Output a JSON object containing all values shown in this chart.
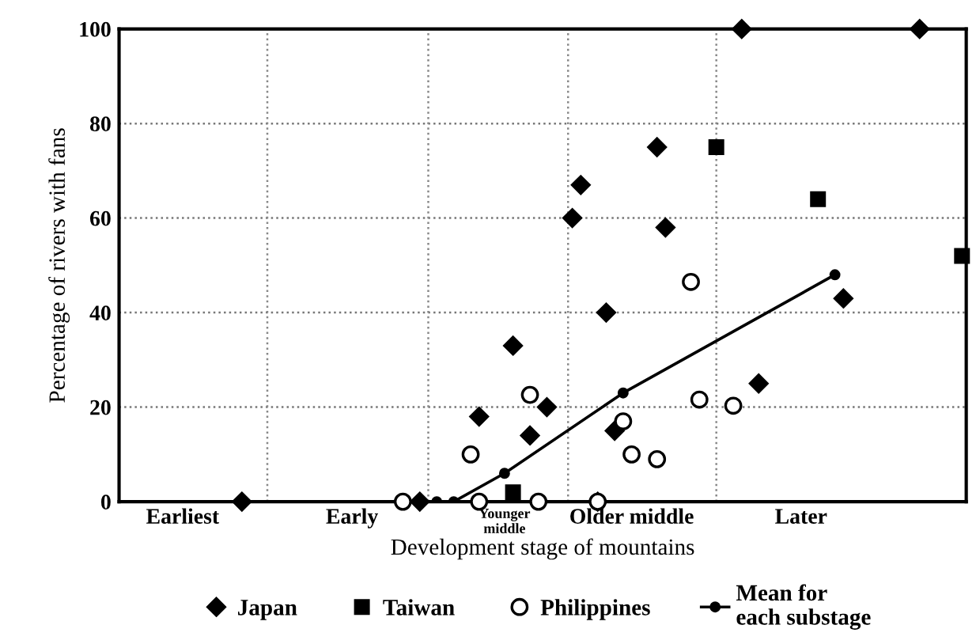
{
  "chart_data": {
    "type": "scatter",
    "xlabel": "Development stage of mountains",
    "ylabel": "Percentage of rivers with fans",
    "ylim": [
      0,
      100
    ],
    "yticks": [
      0,
      20,
      40,
      60,
      80,
      100
    ],
    "categories": [
      null,
      null,
      null,
      null,
      null,
      null,
      null,
      "Earliest",
      null,
      null,
      null,
      null,
      null,
      null,
      null,
      null,
      null,
      null,
      null,
      null,
      null,
      null,
      null,
      null,
      null,
      null,
      null,
      "Early",
      null,
      null,
      null,
      null,
      null,
      null,
      null,
      null,
      null,
      null,
      null,
      null,
      null,
      null,
      null,
      null,
      null,
      "Younger\nmiddle",
      null,
      null,
      null,
      null,
      null,
      null,
      null,
      null,
      null,
      null,
      null,
      null,
      null,
      null,
      "Older middle",
      null,
      null,
      null,
      null,
      null,
      null,
      null,
      null,
      null,
      null,
      null,
      null,
      null,
      null,
      null,
      null,
      null,
      null,
      null,
      "Later",
      null,
      null,
      null,
      null,
      null,
      null,
      null,
      null,
      null,
      null,
      null,
      null,
      null,
      null,
      null,
      null,
      null,
      null,
      null
    ],
    "grid": "y",
    "legend": "bottom",
    "series": [
      {
        "name": "Japan",
        "marker": "diamond",
        "color": "#000000",
        "values": [
          null,
          null,
          null,
          null,
          null,
          null,
          null,
          null,
          null,
          null,
          null,
          null,
          null,
          null,
          0,
          null,
          null,
          null,
          null,
          null,
          null,
          null,
          null,
          null,
          null,
          null,
          null,
          null,
          null,
          null,
          null,
          null,
          null,
          null,
          null,
          0,
          null,
          null,
          null,
          null,
          null,
          null,
          18,
          null,
          null,
          null,
          33,
          null,
          14,
          null,
          20,
          null,
          null,
          60,
          67,
          null,
          0,
          40,
          15,
          null,
          null,
          null,
          null,
          75,
          58,
          null,
          null,
          null,
          null,
          null,
          null,
          null,
          null,
          100,
          null,
          25,
          null,
          null,
          null,
          null,
          null,
          null,
          null,
          null,
          null,
          43,
          null,
          null,
          null,
          null,
          null,
          null,
          null,
          null,
          100,
          null,
          null,
          null,
          null,
          null
        ]
      },
      {
        "name": "Taiwan",
        "marker": "square",
        "color": "#000000",
        "values": [
          null,
          null,
          null,
          null,
          null,
          null,
          null,
          null,
          null,
          null,
          null,
          null,
          null,
          null,
          null,
          null,
          null,
          null,
          null,
          null,
          null,
          null,
          null,
          null,
          null,
          null,
          null,
          null,
          null,
          null,
          null,
          null,
          null,
          null,
          null,
          null,
          null,
          null,
          null,
          null,
          null,
          null,
          null,
          null,
          null,
          null,
          2,
          null,
          null,
          null,
          null,
          null,
          null,
          null,
          null,
          null,
          null,
          null,
          null,
          null,
          null,
          null,
          null,
          null,
          null,
          null,
          null,
          null,
          null,
          null,
          75,
          null,
          null,
          null,
          null,
          null,
          null,
          null,
          null,
          null,
          null,
          null,
          64,
          null,
          null,
          null,
          null,
          null,
          null,
          null,
          null,
          null,
          null,
          null,
          null,
          null,
          null,
          null,
          null,
          52
        ]
      },
      {
        "name": "Philippines",
        "marker": "circle",
        "color": "#ffffff",
        "values": [
          null,
          null,
          null,
          null,
          null,
          null,
          null,
          null,
          null,
          null,
          null,
          null,
          null,
          null,
          null,
          null,
          null,
          null,
          null,
          null,
          null,
          null,
          null,
          null,
          null,
          null,
          null,
          null,
          null,
          null,
          null,
          null,
          null,
          0,
          null,
          null,
          null,
          null,
          null,
          null,
          null,
          10,
          0,
          null,
          null,
          null,
          null,
          null,
          22.6,
          0,
          null,
          null,
          null,
          null,
          null,
          null,
          0,
          null,
          null,
          17,
          10,
          null,
          null,
          9,
          null,
          null,
          null,
          46.5,
          21.6,
          null,
          null,
          null,
          20.3,
          null,
          null,
          null,
          null,
          null,
          null,
          null,
          null,
          null,
          null,
          null,
          null,
          null,
          null,
          null,
          null,
          null,
          null,
          null,
          null,
          null,
          null,
          null,
          null,
          null,
          null,
          null
        ]
      },
      {
        "name": "Mean for\neach substage",
        "type": "line",
        "marker": "circle",
        "color": "#000000",
        "values": [
          null,
          null,
          null,
          null,
          null,
          null,
          null,
          null,
          null,
          null,
          null,
          null,
          null,
          null,
          0,
          null,
          null,
          null,
          null,
          null,
          null,
          null,
          null,
          null,
          null,
          null,
          null,
          null,
          null,
          null,
          null,
          null,
          null,
          null,
          null,
          0,
          null,
          0,
          null,
          0,
          null,
          null,
          null,
          null,
          null,
          6,
          null,
          null,
          null,
          null,
          null,
          null,
          null,
          null,
          null,
          null,
          null,
          null,
          null,
          23,
          null,
          null,
          null,
          null,
          null,
          null,
          null,
          null,
          null,
          null,
          null,
          null,
          null,
          null,
          null,
          null,
          null,
          null,
          null,
          null,
          null,
          null,
          null,
          null,
          48,
          null,
          null,
          null,
          null,
          null,
          null,
          null,
          null,
          null,
          null,
          null,
          null,
          null,
          null,
          null
        ]
      }
    ]
  }
}
